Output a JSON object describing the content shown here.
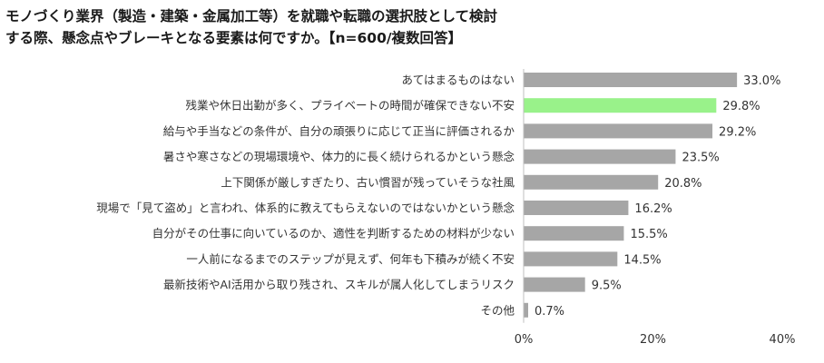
{
  "title": {
    "line1": "モノづくり業界（製造・建築・金属加工等）を就職や転職の選択肢として検討",
    "line2": "する際、懸念点やブレーキとなる要素は何ですか。【n=600/複数回答】"
  },
  "chart_data": {
    "type": "bar",
    "orientation": "horizontal",
    "categories": [
      "あてはまるものはない",
      "残業や休日出勤が多く、プライベートの時間が確保できない不安",
      "給与や手当などの条件が、自分の頑張りに応じて正当に評価されるか",
      "暑さや寒さなどの現場環境や、体力的に長く続けられるかという懸念",
      "上下関係が厳しすぎたり、古い慣習が残っていそうな社風",
      "現場で「見て盗め」と言われ、体系的に教えてもらえないのではないかという懸念",
      "自分がその仕事に向いているのか、適性を判断するための材料が少ない",
      "一人前になるまでのステップが見えず、何年も下積みが続く不安",
      "最新技術やAI活用から取り残され、スキルが属人化してしまうリスク",
      "その他"
    ],
    "values": [
      33.0,
      29.8,
      29.2,
      23.5,
      20.8,
      16.2,
      15.5,
      14.5,
      9.5,
      0.7
    ],
    "value_labels": [
      "33.0%",
      "29.8%",
      "29.2%",
      "23.5%",
      "20.8%",
      "16.2%",
      "15.5%",
      "14.5%",
      "9.5%",
      "0.7%"
    ],
    "highlight_index": 1,
    "xlim": [
      0,
      40
    ],
    "ticks": [
      0,
      20,
      40
    ],
    "tick_labels": [
      "0%",
      "20%",
      "40%"
    ],
    "grid": false,
    "colors": {
      "bar": "#a6a6a6",
      "highlight": "#99f28a",
      "axis": "#bfbfbf"
    }
  }
}
